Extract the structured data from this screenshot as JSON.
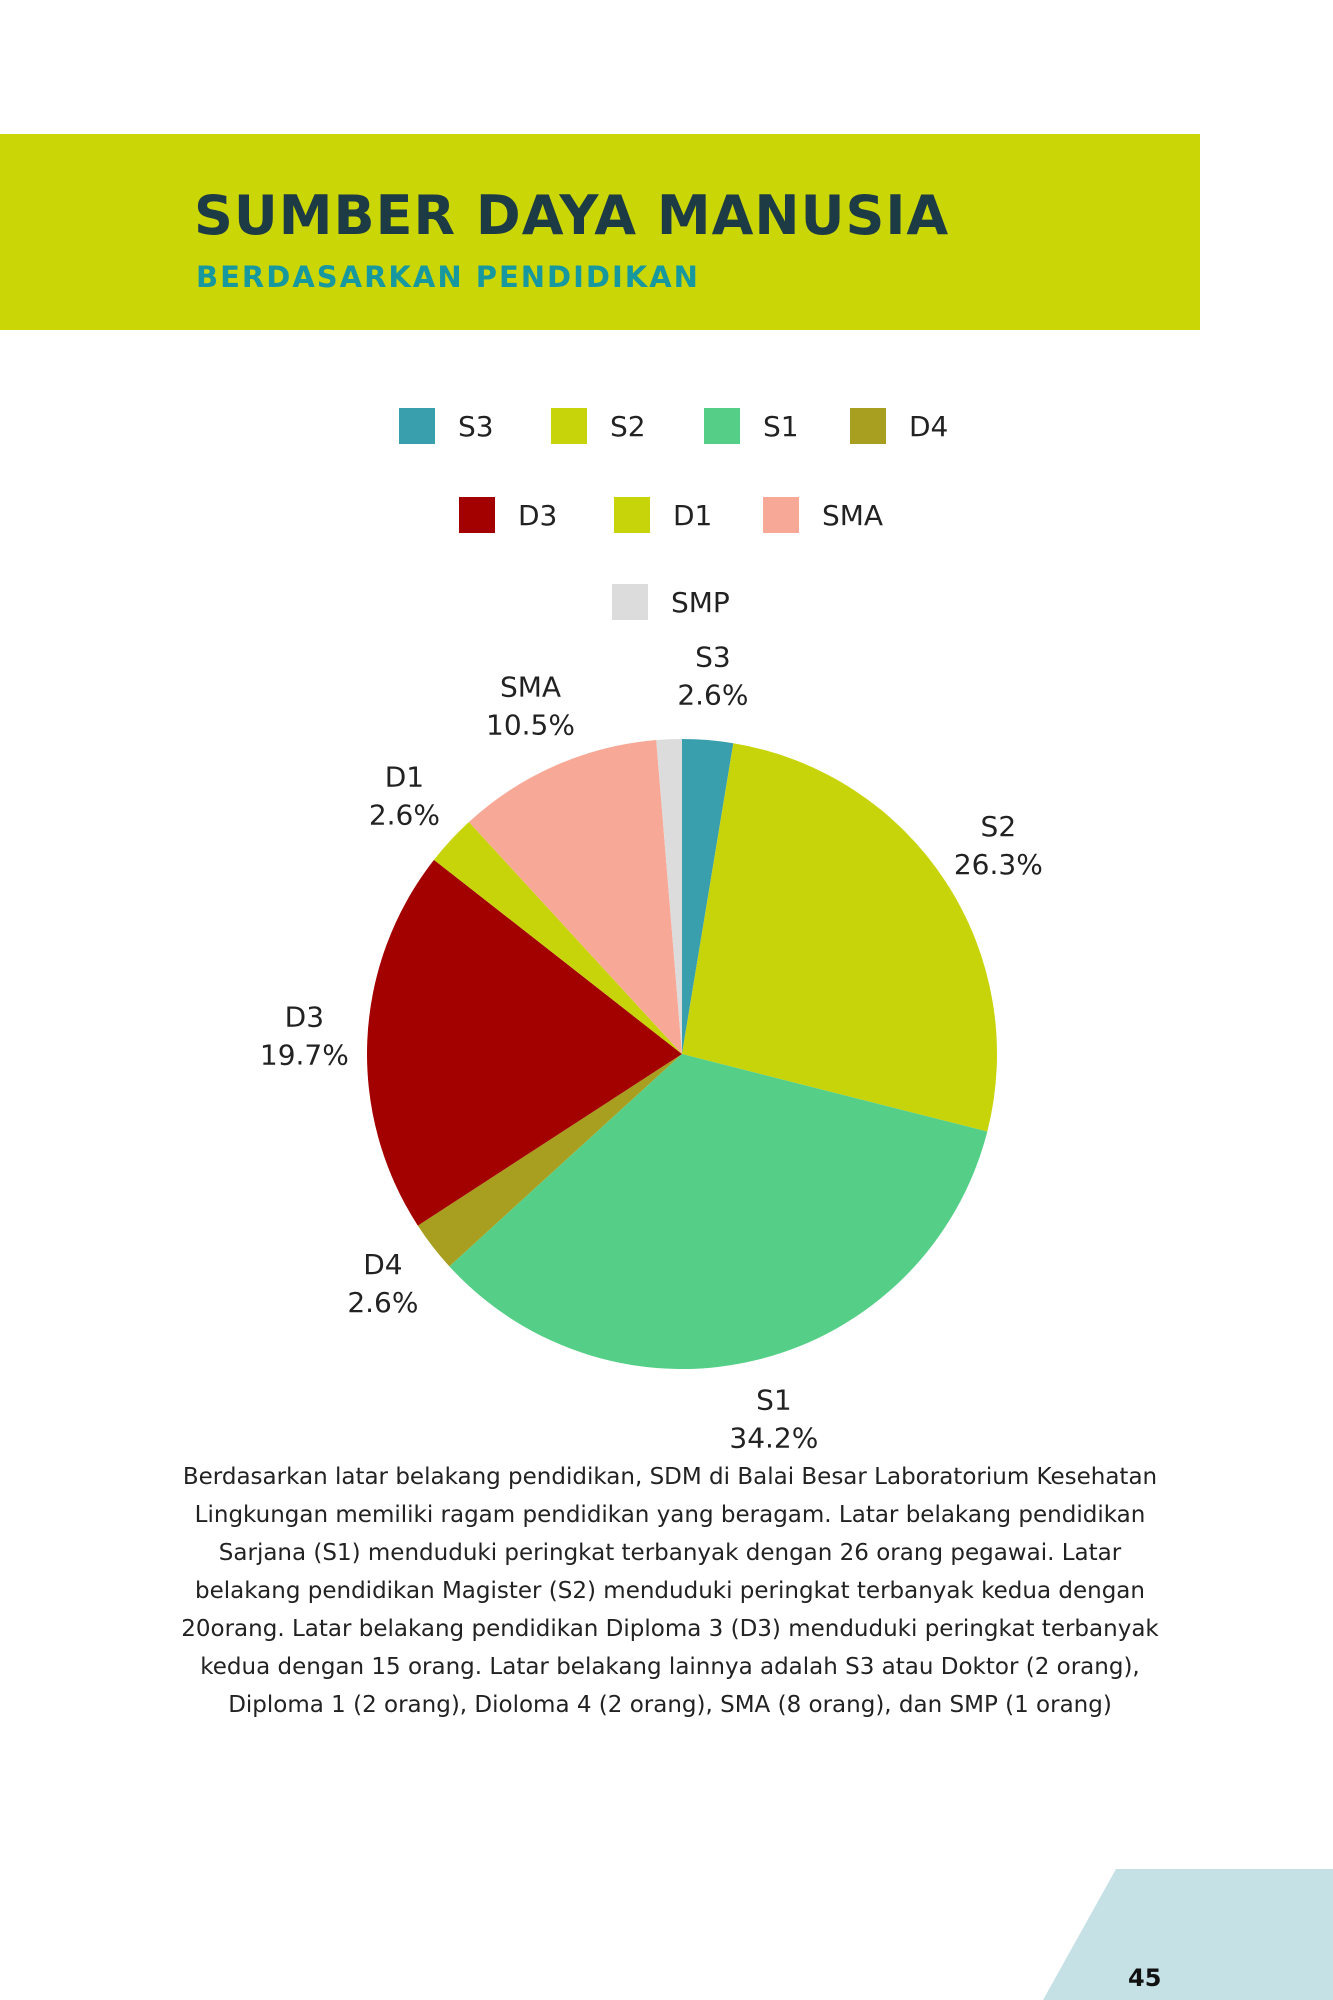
{
  "header": {
    "title": "SUMBER DAYA MANUSIA",
    "subtitle": "BERDASARKAN PENDIDIKAN"
  },
  "chart_data": {
    "type": "pie",
    "categories": [
      "S3",
      "S2",
      "S1",
      "D4",
      "D3",
      "D1",
      "SMA",
      "SMP"
    ],
    "values": [
      2.6,
      26.3,
      34.2,
      2.6,
      19.7,
      2.6,
      10.5,
      1.3
    ],
    "value_labels": [
      "2.6%",
      "26.3%",
      "34.2%",
      "2.6%",
      "19.7%",
      "2.6%",
      "10.5%",
      null
    ],
    "colors": [
      "#3a9fad",
      "#c8d40a",
      "#55cf87",
      "#a89e1f",
      "#a30000",
      "#c8d40a",
      "#f8a896",
      "#dcdcdc"
    ]
  },
  "paragraph": "Berdasarkan latar belakang pendidikan, SDM di Balai Besar Laboratorium Kesehatan Lingkungan memiliki ragam pendidikan yang beragam.  Latar belakang pendidikan Sarjana (S1) menduduki peringkat terbanyak dengan 26 orang pegawai. Latar belakang pendidikan Magister (S2) menduduki peringkat terbanyak kedua dengan 20orang. Latar belakang pendidikan Diploma 3 (D3) menduduki peringkat terbanyak kedua dengan 15 orang. Latar belakang lainnya adalah S3 atau Doktor (2 orang), Diploma 1 (2 orang), Dioloma 4 (2 orang), SMA (8 orang), dan SMP (1 orang)",
  "page_number": "45"
}
